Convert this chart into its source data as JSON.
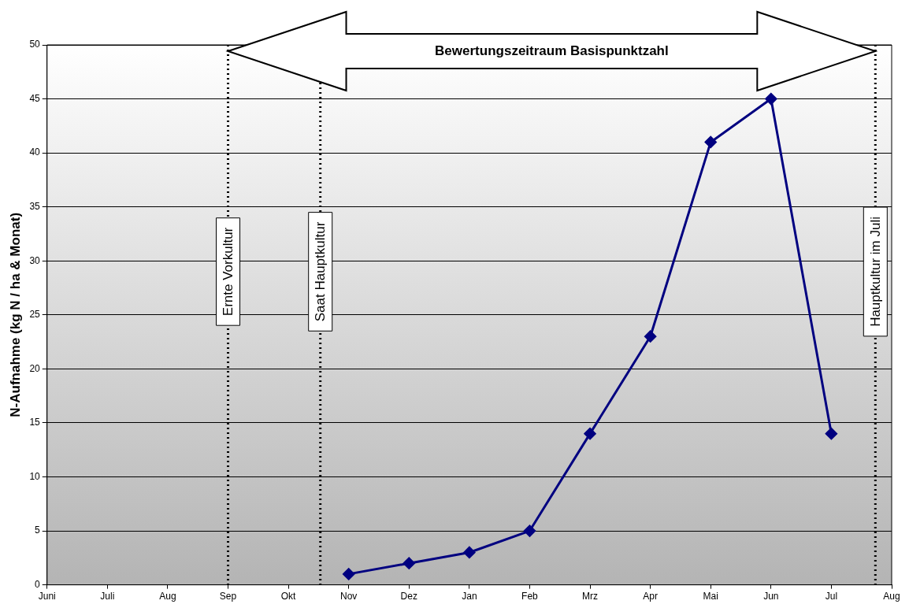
{
  "chart_data": {
    "type": "line",
    "ylabel": "N-Aufnahme (kg N / ha & Monat)",
    "categories": [
      "Juni",
      "Juli",
      "Aug",
      "Sep",
      "Okt",
      "Nov",
      "Dez",
      "Jan",
      "Feb",
      "Mrz",
      "Apr",
      "Mai",
      "Jun",
      "Jul",
      "Aug"
    ],
    "series": [
      {
        "color": "#000080",
        "values": [
          null,
          null,
          null,
          null,
          null,
          1,
          2,
          3,
          5,
          14,
          23,
          41,
          45,
          14,
          null
        ]
      }
    ],
    "ylim": [
      0,
      50
    ],
    "yticks": [
      0,
      5,
      10,
      15,
      20,
      25,
      30,
      35,
      40,
      45,
      50
    ],
    "grid": "y",
    "legend": false,
    "marker": "diamond",
    "line_style": "solid",
    "ref_lines": [
      {
        "axis": "x",
        "value": "Sep",
        "label": "Ernte Vorkultur",
        "color": "#000000",
        "line_style": "dotted"
      }
    ],
    "annotations": [
      "Bewertungszeitraum Basispunktzahl",
      "Saat Hauptkultur",
      "Hauptkultur im Juli"
    ]
  }
}
